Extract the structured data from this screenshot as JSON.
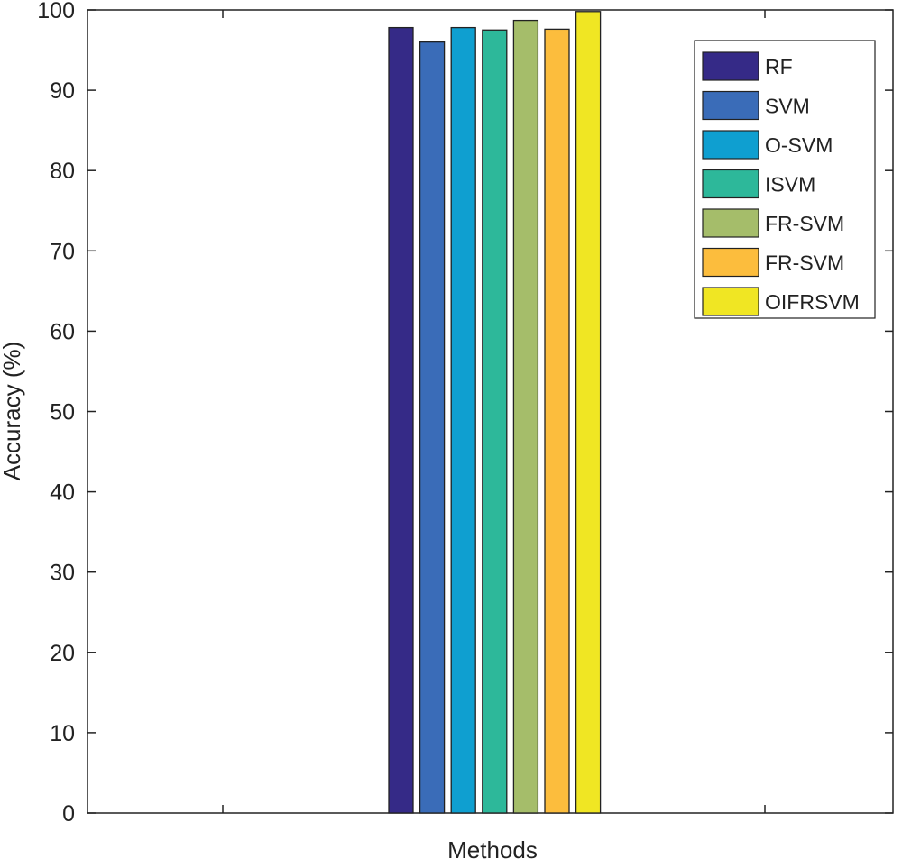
{
  "chart_data": {
    "type": "bar",
    "xlabel": "Methods",
    "ylabel": "Accuracy (%)",
    "ylim": [
      0,
      100
    ],
    "yticks": [
      "0",
      "10",
      "20",
      "30",
      "40",
      "50",
      "60",
      "70",
      "80",
      "90",
      "100"
    ],
    "grid": false,
    "legend_position": "top-right",
    "series": [
      {
        "name": "RF",
        "value": 97.8,
        "color": "#352a87"
      },
      {
        "name": "SVM",
        "value": 96.0,
        "color": "#3a6cb8"
      },
      {
        "name": "O-SVM",
        "value": 97.8,
        "color": "#0f9fd0"
      },
      {
        "name": "ISVM",
        "value": 97.5,
        "color": "#2db89a"
      },
      {
        "name": "FR-SVM",
        "value": 98.7,
        "color": "#a5bd6a"
      },
      {
        "name": "FR-SVM",
        "value": 97.6,
        "color": "#fcbd3d"
      },
      {
        "name": "OIFRSVM",
        "value": 99.8,
        "color": "#f0e623"
      }
    ]
  }
}
